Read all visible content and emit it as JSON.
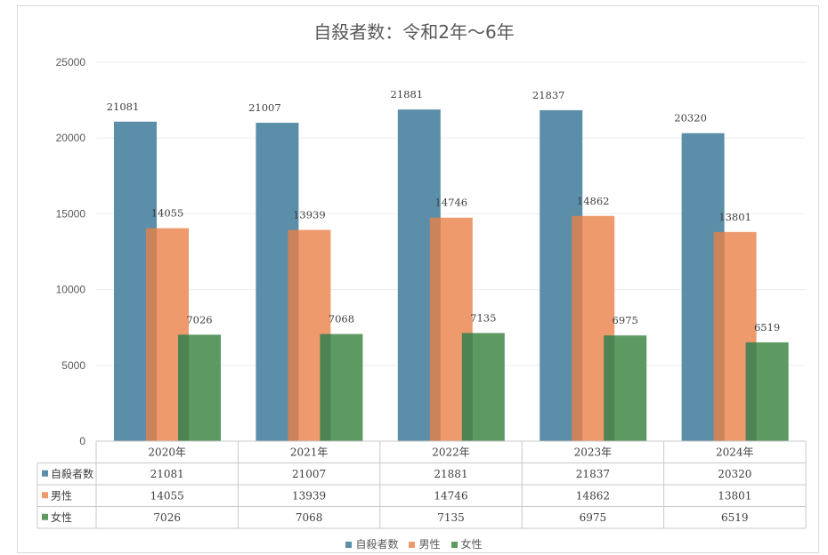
{
  "colors": {
    "series": [
      "#5a8ea9",
      "#ee9a6c",
      "#5c9a62"
    ],
    "grid": "#eeeeee",
    "axis": "#bfbfbf",
    "table_border": "#c8c8c8"
  },
  "chart_data": {
    "type": "bar",
    "title": "自殺者数：令和2年〜6年",
    "categories": [
      "2020年",
      "2021年",
      "2022年",
      "2023年",
      "2024年"
    ],
    "series": [
      {
        "name": "自殺者数",
        "values": [
          21081,
          21007,
          21881,
          21837,
          20320
        ]
      },
      {
        "name": "男性",
        "values": [
          14055,
          13939,
          14746,
          14862,
          13801
        ]
      },
      {
        "name": "女性",
        "values": [
          7026,
          7068,
          7135,
          6975,
          6519
        ]
      }
    ],
    "ylim": [
      0,
      25000
    ],
    "yticks": [
      "0",
      "5000",
      "10000",
      "15000",
      "20000",
      "25000"
    ],
    "grid": true,
    "data_table": true,
    "legend_position": "bottom"
  }
}
